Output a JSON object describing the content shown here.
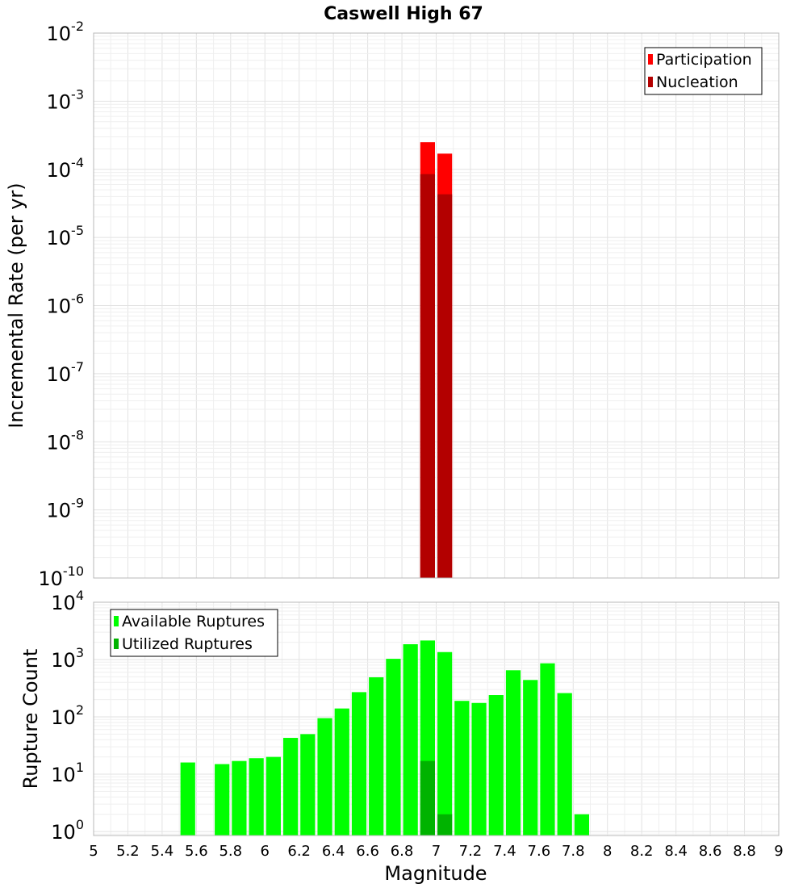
{
  "chart_data": {
    "type": "bar",
    "title": "Caswell High 67",
    "xlabel": "Magnitude",
    "xlim": [
      5,
      9
    ],
    "x_ticks": [
      "5",
      "5.2",
      "5.4",
      "5.6",
      "5.8",
      "6",
      "6.2",
      "6.4",
      "6.6",
      "6.8",
      "7",
      "7.2",
      "7.4",
      "7.6",
      "7.8",
      "8",
      "8.2",
      "8.4",
      "8.6",
      "8.8",
      "9"
    ],
    "bin_width": 0.1,
    "grid": true,
    "panels": [
      {
        "name": "rate",
        "ylabel": "Incremental Rate (per yr)",
        "yscale": "log",
        "ylim_exp": [
          -10,
          -2
        ],
        "y_tick_base": "10",
        "y_tick_exponents": [
          "-10",
          "-9",
          "-8",
          "-7",
          "-6",
          "-5",
          "-4",
          "-3",
          "-2"
        ],
        "legend_position": "top-right",
        "series": [
          {
            "name": "Participation",
            "color": "#ff0000",
            "x": [
              6.95,
              7.05
            ],
            "values": [
              0.00025,
              0.00017
            ]
          },
          {
            "name": "Nucleation",
            "color": "#b30000",
            "x": [
              6.95,
              7.05
            ],
            "values": [
              8.5e-05,
              4.3e-05
            ]
          }
        ]
      },
      {
        "name": "count",
        "ylabel": "Rupture Count",
        "yscale": "log",
        "ylim_exp": [
          -0.07,
          4
        ],
        "y_tick_base": "10",
        "y_tick_exponents": [
          "0",
          "1",
          "2",
          "3",
          "4"
        ],
        "legend_position": "top-left",
        "series": [
          {
            "name": "Available Ruptures",
            "color": "#00ff00",
            "x": [
              5.55,
              5.75,
              5.85,
              5.95,
              6.05,
              6.15,
              6.25,
              6.35,
              6.45,
              6.55,
              6.65,
              6.75,
              6.85,
              6.95,
              7.05,
              7.15,
              7.25,
              7.35,
              7.45,
              7.55,
              7.65,
              7.75,
              7.85
            ],
            "values": [
              16,
              15,
              17,
              19,
              20,
              43,
              50,
              95,
              140,
              270,
              490,
              1030,
              1850,
              2150,
              1350,
              190,
              175,
              240,
              650,
              440,
              860,
              260,
              2
            ]
          },
          {
            "name": "Utilized Ruptures",
            "color": "#00b300",
            "x": [
              6.95,
              7.05
            ],
            "values": [
              17,
              2
            ]
          }
        ]
      }
    ]
  }
}
